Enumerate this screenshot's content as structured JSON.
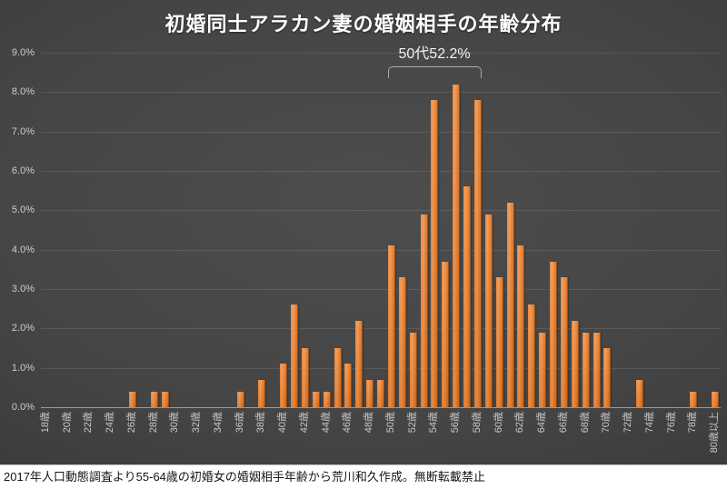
{
  "title": "初婚同士アラカン妻の婚姻相手の年齢分布",
  "annotation": {
    "label": "50代52.2%"
  },
  "footer": "2017年人口動態調査より55-64歳の初婚女の婚姻相手年齢から荒川和久作成。無断転載禁止",
  "colors": {
    "bar": "#ED7D31",
    "background_center": "#4d4d4d",
    "background_edge": "#292929",
    "gridline": "rgba(255,255,255,0.10)",
    "axis_line": "#9b9b9b",
    "tick_text": "#cdcdcd",
    "title_text": "#ffffff",
    "footer_bg": "#ffffff",
    "footer_text": "#141414"
  },
  "chart_data": {
    "type": "bar",
    "title": "初婚同士アラカン妻の婚姻相手の年齢分布",
    "xlabel": "",
    "ylabel": "",
    "ylim": [
      0,
      9
    ],
    "grid": true,
    "annotation": {
      "label": "50代52.2%",
      "range": [
        "50歳",
        "59歳"
      ]
    },
    "y_tick_labels": [
      "0.0%",
      "1.0%",
      "2.0%",
      "3.0%",
      "4.0%",
      "5.0%",
      "6.0%",
      "7.0%",
      "8.0%",
      "9.0%"
    ],
    "x_tick_labels": [
      "18歳",
      "20歳",
      "22歳",
      "24歳",
      "26歳",
      "28歳",
      "30歳",
      "32歳",
      "34歳",
      "36歳",
      "38歳",
      "40歳",
      "42歳",
      "44歳",
      "46歳",
      "48歳",
      "50歳",
      "52歳",
      "54歳",
      "56歳",
      "58歳",
      "60歳",
      "62歳",
      "64歳",
      "66歳",
      "68歳",
      "70歳",
      "72歳",
      "74歳",
      "76歳",
      "78歳",
      "80歳以上"
    ],
    "categories": [
      "18歳",
      "19歳",
      "20歳",
      "21歳",
      "22歳",
      "23歳",
      "24歳",
      "25歳",
      "26歳",
      "27歳",
      "28歳",
      "29歳",
      "30歳",
      "31歳",
      "32歳",
      "33歳",
      "34歳",
      "35歳",
      "36歳",
      "37歳",
      "38歳",
      "39歳",
      "40歳",
      "41歳",
      "42歳",
      "43歳",
      "44歳",
      "45歳",
      "46歳",
      "47歳",
      "48歳",
      "49歳",
      "50歳",
      "51歳",
      "52歳",
      "53歳",
      "54歳",
      "55歳",
      "56歳",
      "57歳",
      "58歳",
      "59歳",
      "60歳",
      "61歳",
      "62歳",
      "63歳",
      "64歳",
      "65歳",
      "66歳",
      "67歳",
      "68歳",
      "69歳",
      "70歳",
      "71歳",
      "72歳",
      "73歳",
      "74歳",
      "75歳",
      "76歳",
      "77歳",
      "78歳",
      "79歳",
      "80歳以上"
    ],
    "values": [
      0,
      0,
      0,
      0,
      0,
      0,
      0,
      0,
      0.4,
      0,
      0.4,
      0.4,
      0,
      0,
      0,
      0,
      0,
      0,
      0.4,
      0,
      0.7,
      0,
      1.1,
      2.6,
      1.5,
      0.4,
      0.4,
      1.5,
      1.1,
      2.2,
      0.7,
      0.7,
      4.1,
      3.3,
      1.9,
      4.9,
      7.8,
      3.7,
      8.2,
      5.6,
      7.8,
      4.9,
      3.3,
      5.2,
      4.1,
      2.6,
      1.9,
      3.7,
      3.3,
      2.2,
      1.9,
      1.9,
      1.5,
      0,
      0,
      0.7,
      0,
      0,
      0,
      0,
      0.4,
      0,
      0.4
    ],
    "unit": "%"
  }
}
